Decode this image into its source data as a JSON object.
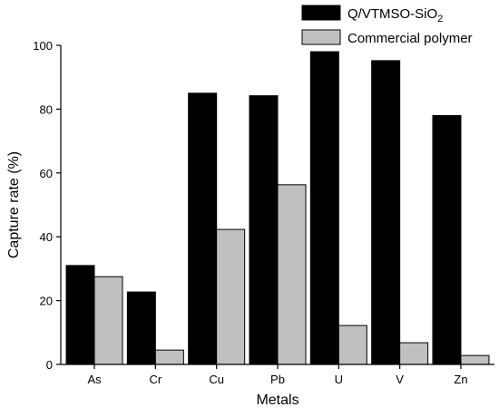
{
  "chart_data": {
    "type": "bar",
    "xlabel": "Metals",
    "ylabel": "Capture rate (%)",
    "ylim": [
      0,
      100
    ],
    "yticks": [
      0,
      20,
      40,
      60,
      80,
      100
    ],
    "categories": [
      "As",
      "Cr",
      "Cu",
      "Pb",
      "U",
      "V",
      "Zn"
    ],
    "series": [
      {
        "name": "Q/VTMSO-SiO",
        "name_sub": "2",
        "color": "#000000",
        "values": [
          31,
          22.7,
          85,
          84.2,
          98,
          95.2,
          78
        ]
      },
      {
        "name": "Commercial polymer",
        "color": "#c0c0c0",
        "values": [
          27.5,
          4.5,
          42.3,
          56.3,
          12.2,
          6.8,
          2.8
        ]
      }
    ],
    "legend_position": "top-right",
    "grid": false
  }
}
